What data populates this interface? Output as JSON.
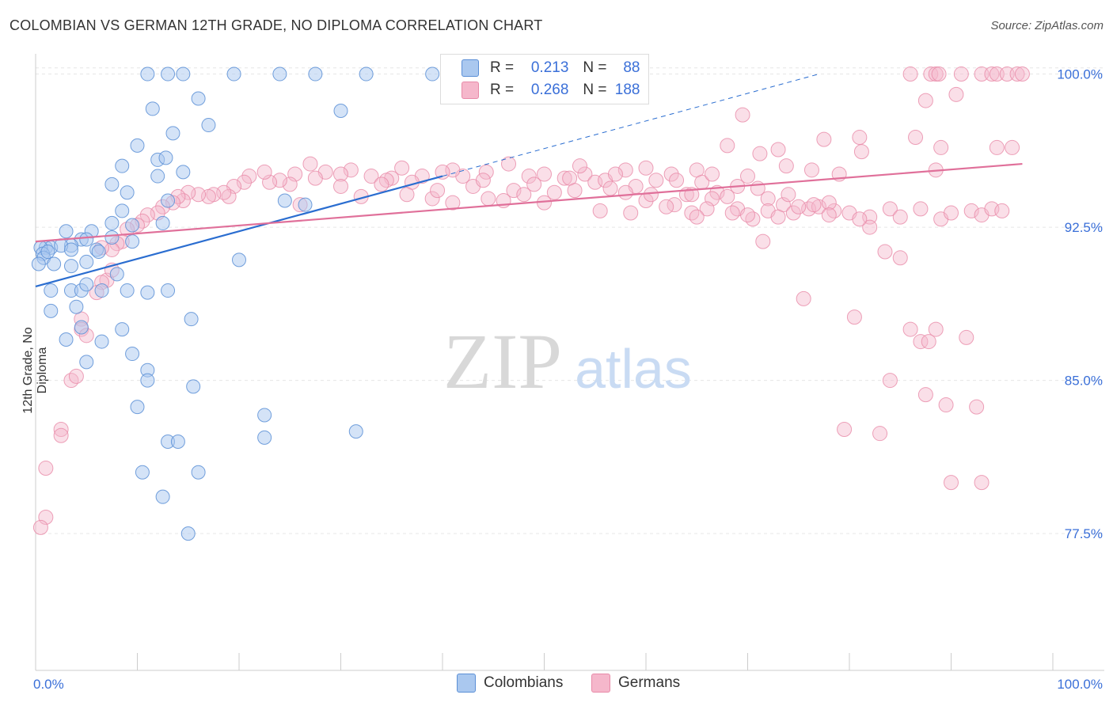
{
  "title": "COLOMBIAN VS GERMAN 12TH GRADE, NO DIPLOMA CORRELATION CHART",
  "source": "Source: ZipAtlas.com",
  "watermark": {
    "zip": "ZIP",
    "atlas": "atlas"
  },
  "legend": {
    "r_label": "R =",
    "n_label": "N =",
    "rows": [
      {
        "r": "0.213",
        "n": "88"
      },
      {
        "r": "0.268",
        "n": "188"
      }
    ]
  },
  "bottom_legend": [
    "Colombians",
    "Germans"
  ],
  "colors": {
    "colombians_fill": "#aac8ef",
    "colombians_stroke": "#5b8fd6",
    "colombians_line": "#2a6dd0",
    "germans_fill": "#f5b7cb",
    "germans_stroke": "#e88aa8",
    "germans_line": "#e0709a",
    "axis_label": "#3a6fd8"
  },
  "chart_data": {
    "type": "scatter",
    "title": "COLOMBIAN VS GERMAN 12TH GRADE, NO DIPLOMA CORRELATION CHART",
    "xlabel": "",
    "ylabel": "12th Grade, No Diploma",
    "x_tick_labels": [
      "0.0%",
      "100.0%"
    ],
    "y_tick_labels": [
      "100.0%",
      "92.5%",
      "85.0%",
      "77.5%"
    ],
    "y_ticks": [
      100.0,
      92.5,
      85.0,
      77.5
    ],
    "xlim": [
      0,
      100
    ],
    "ylim": [
      70.8,
      101.3
    ],
    "grid": true,
    "series": [
      {
        "name": "Colombians",
        "r": 0.213,
        "n": 88,
        "trend": {
          "x": [
            0,
            40
          ],
          "y": [
            89.6,
            95.0
          ],
          "dashed_to": {
            "x": 77,
            "y": 100.0
          }
        },
        "points": [
          [
            11,
            100
          ],
          [
            13,
            100
          ],
          [
            14.5,
            100
          ],
          [
            19.5,
            100
          ],
          [
            24,
            100
          ],
          [
            27.5,
            100
          ],
          [
            32.5,
            100
          ],
          [
            39,
            100
          ],
          [
            16,
            98.8
          ],
          [
            11.5,
            98.3
          ],
          [
            30,
            98.2
          ],
          [
            17,
            97.5
          ],
          [
            13.5,
            97.1
          ],
          [
            10,
            96.5
          ],
          [
            12,
            95.8
          ],
          [
            12.8,
            95.9
          ],
          [
            8.5,
            95.5
          ],
          [
            12,
            95
          ],
          [
            14.5,
            95.2
          ],
          [
            7.5,
            94.6
          ],
          [
            9,
            94.2
          ],
          [
            13,
            93.8
          ],
          [
            24.5,
            93.8
          ],
          [
            8.5,
            93.3
          ],
          [
            26.5,
            93.6
          ],
          [
            7.5,
            92.7
          ],
          [
            12.5,
            92.7
          ],
          [
            3,
            92.3
          ],
          [
            5.5,
            92.3
          ],
          [
            9.5,
            92.6
          ],
          [
            4.5,
            91.9
          ],
          [
            5,
            91.9
          ],
          [
            7.5,
            92
          ],
          [
            3.5,
            91.6
          ],
          [
            1,
            91.5
          ],
          [
            1.5,
            91.5
          ],
          [
            2.5,
            91.6
          ],
          [
            6,
            91.4
          ],
          [
            6.2,
            91.3
          ],
          [
            0.5,
            91.5
          ],
          [
            0.7,
            91.2
          ],
          [
            0.8,
            91
          ],
          [
            1.2,
            91.3
          ],
          [
            9.5,
            91.8
          ],
          [
            3.5,
            91.4
          ],
          [
            1.8,
            90.7
          ],
          [
            3.5,
            90.6
          ],
          [
            5,
            90.8
          ],
          [
            0.3,
            90.7
          ],
          [
            20,
            90.9
          ],
          [
            8,
            90.2
          ],
          [
            1.5,
            89.4
          ],
          [
            3.5,
            89.4
          ],
          [
            4.5,
            89.4
          ],
          [
            6.5,
            89.4
          ],
          [
            5,
            89.7
          ],
          [
            11,
            89.3
          ],
          [
            9,
            89.4
          ],
          [
            13,
            89.4
          ],
          [
            1.5,
            88.4
          ],
          [
            4,
            88.6
          ],
          [
            15.3,
            88
          ],
          [
            4.5,
            87.6
          ],
          [
            8.5,
            87.5
          ],
          [
            3,
            87
          ],
          [
            6.5,
            86.9
          ],
          [
            9.5,
            86.3
          ],
          [
            5,
            85.9
          ],
          [
            11,
            85.5
          ],
          [
            11,
            85
          ],
          [
            15.5,
            84.7
          ],
          [
            10,
            83.7
          ],
          [
            22.5,
            83.3
          ],
          [
            31.5,
            82.5
          ],
          [
            22.5,
            82.2
          ],
          [
            13,
            82
          ],
          [
            14,
            82
          ],
          [
            10.5,
            80.5
          ],
          [
            16,
            80.5
          ],
          [
            12.5,
            79.3
          ],
          [
            15,
            77.5
          ]
        ]
      },
      {
        "name": "Germans",
        "r": 0.268,
        "n": 188,
        "trend": {
          "x": [
            0,
            97
          ],
          "y": [
            91.8,
            95.6
          ]
        },
        "points": [
          [
            86,
            100
          ],
          [
            88,
            100
          ],
          [
            88.5,
            100
          ],
          [
            88.8,
            100
          ],
          [
            91,
            100
          ],
          [
            93,
            100
          ],
          [
            94,
            100
          ],
          [
            94.5,
            100
          ],
          [
            95.5,
            100
          ],
          [
            96.5,
            100
          ],
          [
            97,
            100
          ],
          [
            90.5,
            99
          ],
          [
            87.5,
            98.7
          ],
          [
            69.5,
            98
          ],
          [
            81,
            96.9
          ],
          [
            86.5,
            96.9
          ],
          [
            77.5,
            96.8
          ],
          [
            73,
            96.3
          ],
          [
            68,
            96.5
          ],
          [
            71.2,
            96.1
          ],
          [
            81.2,
            96.2
          ],
          [
            89,
            96.4
          ],
          [
            96,
            96.4
          ],
          [
            94.5,
            96.4
          ],
          [
            73.8,
            95.5
          ],
          [
            76.3,
            95.3
          ],
          [
            79,
            95.1
          ],
          [
            88.5,
            95.3
          ],
          [
            70,
            95
          ],
          [
            65,
            95.3
          ],
          [
            60,
            95.4
          ],
          [
            58,
            95.3
          ],
          [
            54,
            95.1
          ],
          [
            53.5,
            95.5
          ],
          [
            52,
            94.9
          ],
          [
            50,
            95.1
          ],
          [
            48.5,
            95
          ],
          [
            46.5,
            95.6
          ],
          [
            44.3,
            95.2
          ],
          [
            42,
            95
          ],
          [
            41,
            95.3
          ],
          [
            40,
            95.2
          ],
          [
            38,
            95
          ],
          [
            36,
            95.4
          ],
          [
            35,
            94.9
          ],
          [
            33,
            95
          ],
          [
            31,
            95.3
          ],
          [
            30,
            95.1
          ],
          [
            28.5,
            95.2
          ],
          [
            27.5,
            94.9
          ],
          [
            27,
            95.6
          ],
          [
            25.5,
            95.1
          ],
          [
            25,
            94.6
          ],
          [
            24,
            94.8
          ],
          [
            23,
            94.7
          ],
          [
            22.5,
            95.2
          ],
          [
            21,
            95
          ],
          [
            20.5,
            94.7
          ],
          [
            19.5,
            94.5
          ],
          [
            19,
            94
          ],
          [
            18.5,
            94.2
          ],
          [
            17.5,
            94.1
          ],
          [
            17,
            94
          ],
          [
            16,
            94.1
          ],
          [
            15,
            94.2
          ],
          [
            14.5,
            93.8
          ],
          [
            14,
            94
          ],
          [
            13.5,
            93.7
          ],
          [
            12.5,
            93.5
          ],
          [
            12,
            93.2
          ],
          [
            11,
            93.1
          ],
          [
            10.5,
            92.8
          ],
          [
            10,
            92.6
          ],
          [
            9,
            92.4
          ],
          [
            8.5,
            91.8
          ],
          [
            8,
            91.7
          ],
          [
            7.5,
            91.4
          ],
          [
            6.5,
            91.5
          ],
          [
            7,
            89.9
          ],
          [
            6.5,
            89.8
          ],
          [
            6,
            89.3
          ],
          [
            7.5,
            90.4
          ],
          [
            4.5,
            88
          ],
          [
            4.5,
            87.5
          ],
          [
            5,
            87.2
          ],
          [
            3.5,
            85
          ],
          [
            4,
            85.2
          ],
          [
            2.5,
            82.6
          ],
          [
            2.5,
            82.3
          ],
          [
            1,
            80.7
          ],
          [
            1,
            78.3
          ],
          [
            0.5,
            77.8
          ],
          [
            26,
            93.6
          ],
          [
            30,
            94.5
          ],
          [
            32,
            94
          ],
          [
            34.5,
            94.8
          ],
          [
            37,
            94.7
          ],
          [
            39,
            93.9
          ],
          [
            43,
            94.5
          ],
          [
            44,
            94.8
          ],
          [
            47,
            94.3
          ],
          [
            49,
            94.6
          ],
          [
            52.5,
            94.9
          ],
          [
            55,
            94.7
          ],
          [
            56,
            94.8
          ],
          [
            57,
            95.1
          ],
          [
            59,
            94.5
          ],
          [
            61,
            94.8
          ],
          [
            62.5,
            95.1
          ],
          [
            63,
            94.8
          ],
          [
            64,
            94.1
          ],
          [
            65.5,
            94.7
          ],
          [
            66.5,
            95.1
          ],
          [
            67,
            94.2
          ],
          [
            68,
            94
          ],
          [
            69,
            94.5
          ],
          [
            71,
            94.4
          ],
          [
            72,
            93.9
          ],
          [
            73.5,
            93.6
          ],
          [
            74,
            94.1
          ],
          [
            76,
            93.4
          ],
          [
            77,
            93.5
          ],
          [
            78.5,
            93.3
          ],
          [
            80,
            93.2
          ],
          [
            82,
            93
          ],
          [
            84,
            93.4
          ],
          [
            85,
            93
          ],
          [
            87,
            93.4
          ],
          [
            89,
            92.9
          ],
          [
            90,
            93.2
          ],
          [
            92,
            93.3
          ],
          [
            93,
            93.1
          ],
          [
            94,
            93.4
          ],
          [
            95,
            93.3
          ],
          [
            62.8,
            93.6
          ],
          [
            60,
            93.8
          ],
          [
            64.5,
            93.2
          ],
          [
            69,
            93.4
          ],
          [
            66.5,
            93.9
          ],
          [
            70.5,
            92.9
          ],
          [
            71.5,
            91.8
          ],
          [
            75.5,
            89
          ],
          [
            80.5,
            88.1
          ],
          [
            83.5,
            91.3
          ],
          [
            85,
            91
          ],
          [
            82,
            92.5
          ],
          [
            78,
            93.7
          ],
          [
            76.5,
            93.6
          ],
          [
            74.5,
            93.2
          ],
          [
            86,
            87.5
          ],
          [
            87,
            86.9
          ],
          [
            87.8,
            86.9
          ],
          [
            88.5,
            87.5
          ],
          [
            91.5,
            87.1
          ],
          [
            84,
            85
          ],
          [
            87.5,
            84.3
          ],
          [
            89.5,
            83.8
          ],
          [
            92.5,
            83.7
          ],
          [
            79.5,
            82.6
          ],
          [
            83,
            82.4
          ],
          [
            93,
            80
          ],
          [
            90,
            80
          ],
          [
            46,
            93.8
          ],
          [
            50,
            93.7
          ],
          [
            55.5,
            93.3
          ],
          [
            58.5,
            93.2
          ],
          [
            62,
            93.5
          ],
          [
            66,
            93.4
          ],
          [
            68.5,
            93.2
          ],
          [
            72,
            93.3
          ],
          [
            75,
            93.5
          ],
          [
            34,
            94.6
          ],
          [
            36.5,
            94.1
          ],
          [
            39.5,
            94.3
          ],
          [
            41,
            93.7
          ],
          [
            44.5,
            93.9
          ],
          [
            48,
            94.1
          ],
          [
            51,
            94.2
          ],
          [
            53,
            94.3
          ],
          [
            56.5,
            94.4
          ],
          [
            58,
            94.2
          ],
          [
            60.5,
            94.1
          ],
          [
            64.5,
            94.1
          ],
          [
            65,
            93
          ],
          [
            70,
            93.1
          ],
          [
            73,
            93
          ],
          [
            78,
            93.1
          ],
          [
            81,
            92.9
          ]
        ]
      }
    ]
  }
}
